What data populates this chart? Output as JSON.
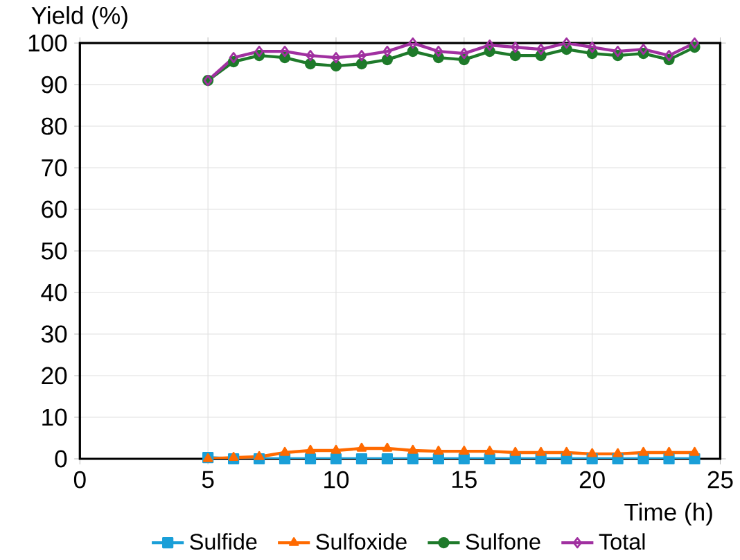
{
  "chart_data": {
    "type": "line",
    "ylabel": "Yield (%)",
    "xlabel": "Time (h)",
    "xlim": [
      0,
      25
    ],
    "ylim": [
      0,
      100
    ],
    "xticks": [
      0,
      5,
      10,
      15,
      20,
      25
    ],
    "yticks": [
      0,
      10,
      20,
      30,
      40,
      50,
      60,
      70,
      80,
      90,
      100
    ],
    "grid": true,
    "legend": "bottom",
    "line_style": "solid",
    "x": [
      5,
      6,
      7,
      8,
      9,
      10,
      11,
      12,
      13,
      14,
      15,
      16,
      17,
      18,
      19,
      20,
      21,
      22,
      23,
      24
    ],
    "series": [
      {
        "name": "Sulfide",
        "color": "#1a9fd8",
        "marker": "square",
        "values": [
          0.3,
          0,
          0,
          0,
          0,
          0,
          0,
          0,
          0,
          0,
          0,
          0,
          0,
          0,
          0,
          0,
          0,
          0,
          0,
          0
        ]
      },
      {
        "name": "Sulfoxide",
        "color": "#ff6a00",
        "marker": "triangle",
        "values": [
          0,
          0.3,
          0.5,
          1.5,
          2,
          2,
          2.5,
          2.5,
          2,
          1.8,
          1.8,
          1.8,
          1.5,
          1.5,
          1.5,
          1.2,
          1.2,
          1.5,
          1.5,
          1.5
        ]
      },
      {
        "name": "Sulfone",
        "color": "#1e7a2a",
        "marker": "circle",
        "values": [
          91,
          95.5,
          97,
          96.5,
          95,
          94.5,
          95,
          96,
          98,
          96.5,
          96,
          98,
          97,
          97,
          98.5,
          97.5,
          97,
          97.5,
          96,
          99
        ]
      },
      {
        "name": "Total",
        "color": "#a030a0",
        "marker": "diamond",
        "values": [
          91,
          96.5,
          98,
          98,
          97,
          96.5,
          97,
          98,
          100,
          98,
          97.5,
          99.5,
          99,
          98.5,
          100,
          99,
          98,
          98.5,
          97,
          100
        ]
      }
    ]
  }
}
